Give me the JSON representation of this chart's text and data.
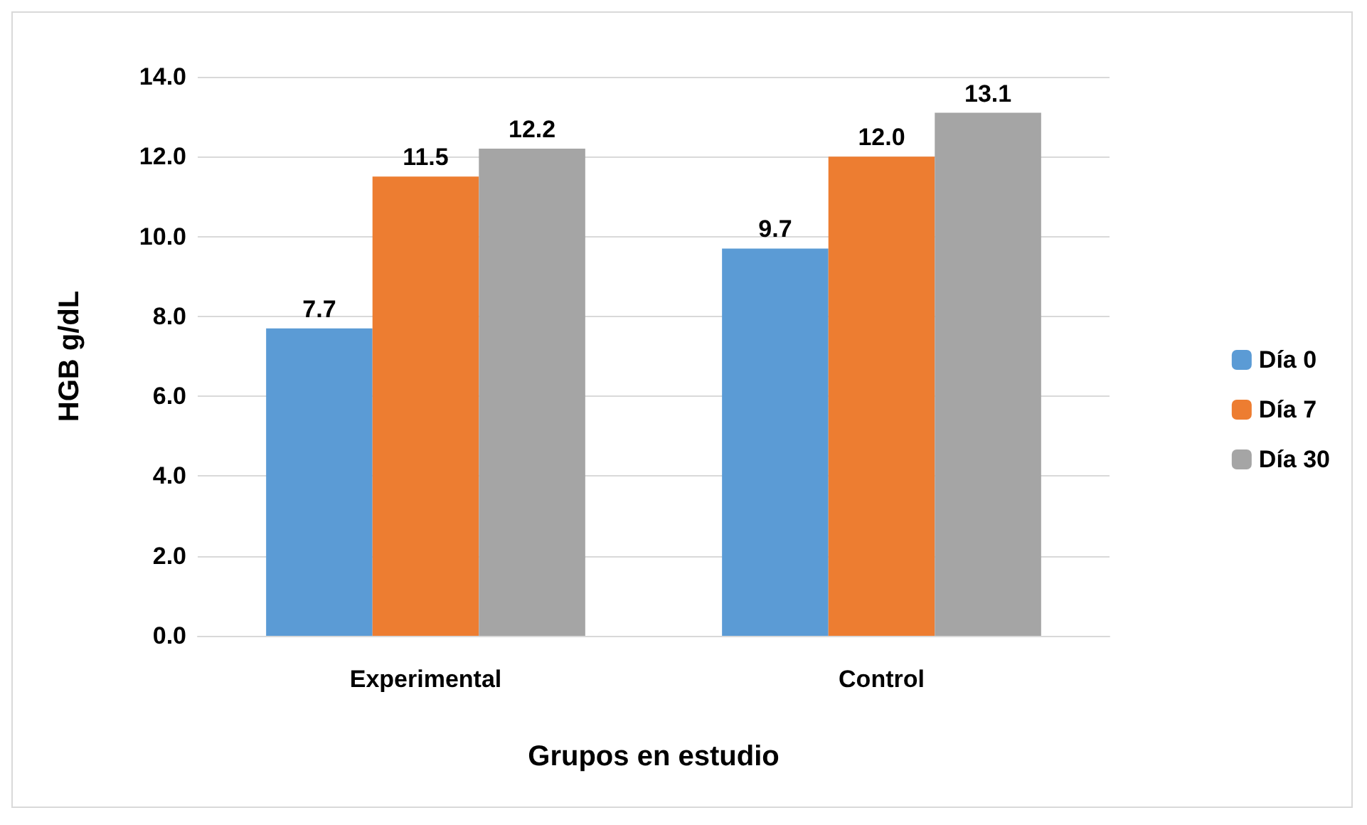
{
  "chart_data": {
    "type": "bar",
    "xlabel": "Grupos en estudio",
    "ylabel": "HGB g/dL",
    "categories": [
      "Experimental",
      "Control"
    ],
    "series": [
      {
        "name": "Día 0",
        "color": "#5b9bd5",
        "values": [
          7.7,
          9.7
        ],
        "value_labels": [
          "7.7",
          "9.7"
        ]
      },
      {
        "name": "Día 7",
        "color": "#ed7d31",
        "values": [
          11.5,
          12.0
        ],
        "value_labels": [
          "11.5",
          "12.0"
        ]
      },
      {
        "name": "Día 30",
        "color": "#a5a5a5",
        "values": [
          12.2,
          13.1
        ],
        "value_labels": [
          "12.2",
          "13.1"
        ]
      }
    ],
    "ylim": [
      0,
      14
    ],
    "yticks": [
      {
        "value": 0,
        "label": "0.0"
      },
      {
        "value": 2,
        "label": "2.0"
      },
      {
        "value": 4,
        "label": "4.0"
      },
      {
        "value": 6,
        "label": "6.0"
      },
      {
        "value": 8,
        "label": "8.0"
      },
      {
        "value": 10,
        "label": "10.0"
      },
      {
        "value": 12,
        "label": "12.0"
      },
      {
        "value": 14,
        "label": "14.0"
      }
    ],
    "grid": "y",
    "legend": "right"
  }
}
